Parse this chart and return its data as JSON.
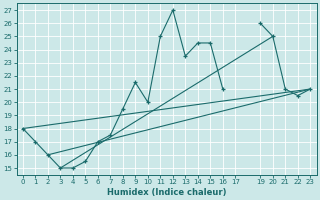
{
  "title": "",
  "xlabel": "Humidex (Indice chaleur)",
  "bg_color": "#cce8e8",
  "line_color": "#1a6b6b",
  "xlim": [
    -0.5,
    23.5
  ],
  "ylim": [
    14.5,
    27.5
  ],
  "xticks": [
    0,
    1,
    2,
    3,
    4,
    5,
    6,
    7,
    8,
    9,
    10,
    11,
    12,
    13,
    14,
    15,
    16,
    17,
    19,
    20,
    21,
    22,
    23
  ],
  "yticks": [
    15,
    16,
    17,
    18,
    19,
    20,
    21,
    22,
    23,
    24,
    25,
    26,
    27
  ],
  "series": [
    [
      0,
      18
    ],
    [
      1,
      17
    ],
    [
      2,
      16
    ],
    [
      3,
      15
    ],
    [
      4,
      15
    ],
    [
      5,
      15.5
    ],
    [
      6,
      17
    ],
    [
      7,
      17.5
    ],
    [
      8,
      19.5
    ],
    [
      9,
      21.5
    ],
    [
      10,
      20
    ],
    [
      11,
      25
    ],
    [
      12,
      27
    ],
    [
      13,
      23.5
    ],
    [
      14,
      24.5
    ],
    [
      15,
      24.5
    ],
    [
      16,
      21
    ],
    [
      17,
      null
    ],
    [
      19,
      26
    ],
    [
      20,
      25
    ],
    [
      21,
      21
    ],
    [
      22,
      20.5
    ],
    [
      23,
      21
    ]
  ],
  "line2": [
    [
      0,
      18
    ],
    [
      23,
      21
    ]
  ],
  "line3": [
    [
      2,
      16
    ],
    [
      23,
      21
    ]
  ],
  "line4": [
    [
      3,
      15
    ],
    [
      20,
      25
    ]
  ]
}
